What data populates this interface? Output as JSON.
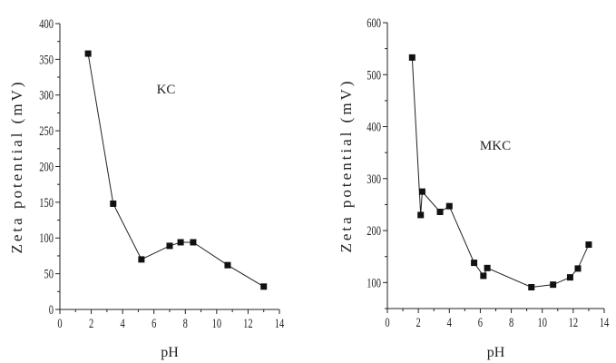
{
  "chart_data": [
    {
      "type": "line",
      "annotation": "KC",
      "xlabel": "pH",
      "ylabel": "Zeta potential (mV)",
      "xlim": [
        0,
        14
      ],
      "ylim": [
        0,
        400
      ],
      "xticks": [
        0,
        2,
        4,
        6,
        8,
        10,
        12,
        14
      ],
      "yticks": [
        0,
        50,
        100,
        150,
        200,
        250,
        300,
        350,
        400
      ],
      "grid": false,
      "series": [
        {
          "name": "KC",
          "marker": "square",
          "x": [
            1.8,
            3.4,
            5.2,
            7.0,
            7.7,
            8.5,
            10.7,
            13.0
          ],
          "y": [
            358,
            148,
            70,
            89,
            94,
            94,
            62,
            32
          ]
        }
      ]
    },
    {
      "type": "line",
      "annotation": "MKC",
      "xlabel": "pH",
      "ylabel": "Zeta potential (mV)",
      "xlim": [
        0,
        14
      ],
      "ylim": [
        50,
        600
      ],
      "xticks": [
        0,
        2,
        4,
        6,
        8,
        10,
        12,
        14
      ],
      "yticks": [
        100,
        200,
        300,
        400,
        500,
        600
      ],
      "grid": false,
      "series": [
        {
          "name": "MKC",
          "marker": "square",
          "x": [
            1.6,
            2.15,
            2.25,
            3.4,
            4.0,
            5.6,
            6.2,
            6.45,
            9.3,
            10.7,
            11.8,
            12.3,
            13.0
          ],
          "y": [
            533,
            230,
            275,
            236,
            247,
            138,
            113,
            128,
            91,
            96,
            110,
            127,
            173
          ]
        }
      ]
    }
  ]
}
